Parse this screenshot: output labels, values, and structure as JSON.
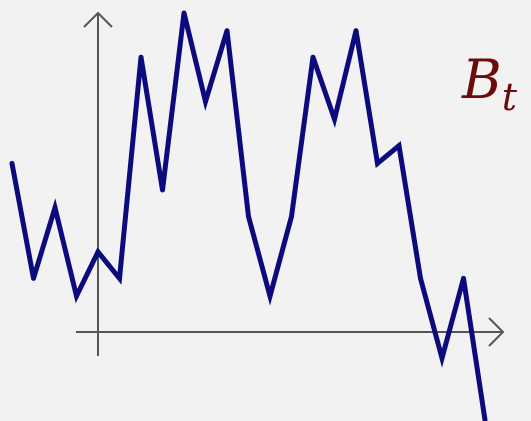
{
  "colors": {
    "background": "#f2f2f2",
    "axis": "#555555",
    "series": "#0b0b7e",
    "label": "#6b0b0b"
  },
  "label": {
    "symbol": "B",
    "subscript": "t"
  },
  "chart_data": {
    "type": "line",
    "title": "",
    "xlabel": "",
    "ylabel": "",
    "grid": false,
    "legend": "none",
    "xlim": [
      -4,
      18
    ],
    "ylim": [
      -0.9,
      3.7
    ],
    "x": [
      -4,
      -3,
      -2,
      -1,
      0,
      1,
      2,
      3,
      4,
      5,
      6,
      7,
      8,
      9,
      10,
      11,
      12,
      13,
      14,
      15,
      16,
      17,
      18
    ],
    "series": [
      {
        "values": [
          2.0,
          0.7,
          1.5,
          0.5,
          1.0,
          0.7,
          3.2,
          1.7,
          3.7,
          2.7,
          3.5,
          1.4,
          0.5,
          1.4,
          3.2,
          2.5,
          3.5,
          2.0,
          2.2,
          0.7,
          -0.2,
          0.7,
          -0.9
        ]
      }
    ]
  }
}
